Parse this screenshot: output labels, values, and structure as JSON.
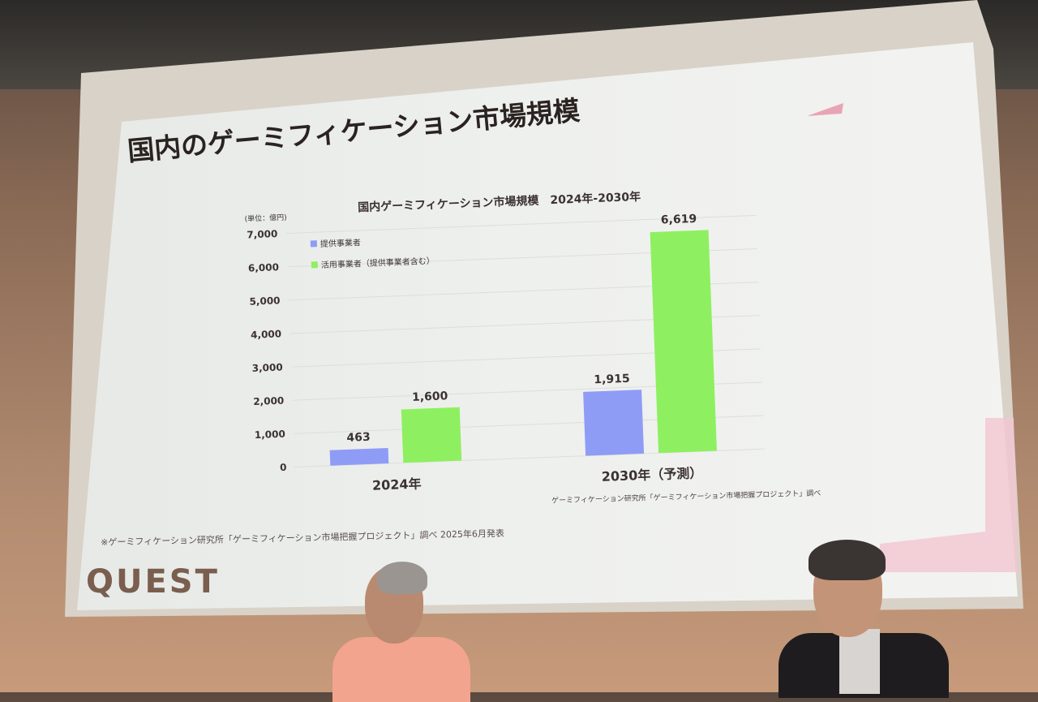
{
  "slide": {
    "title": "国内のゲーミフィケーション市場規模",
    "source_small": "ゲーミフィケーション研究所「ゲーミフィケーション市場把握プロジェクト」調べ",
    "footnote": "※ゲーミフィケーション研究所「ゲーミフィケーション市場把握プロジェクト」調べ 2025年6月発表",
    "logo": "QUEST"
  },
  "chart_data": {
    "type": "bar",
    "title": "国内ゲーミフィケーション市場規模　2024年-2030年",
    "unit_label": "(単位：億円)",
    "categories": [
      "2024年",
      "2030年（予測）"
    ],
    "series": [
      {
        "name": "提供事業者",
        "values": [
          463,
          1915
        ],
        "color": "#8f9cf5"
      },
      {
        "name": "活用事業者（提供事業者含む）",
        "values": [
          1600,
          6619
        ],
        "color": "#8ef060"
      }
    ],
    "data_labels": [
      [
        "463",
        "1,915"
      ],
      [
        "1,600",
        "6,619"
      ]
    ],
    "ylim": [
      0,
      7000
    ],
    "yticks": [
      "0",
      "1,000",
      "2,000",
      "3,000",
      "4,000",
      "5,000",
      "6,000",
      "7,000"
    ],
    "ytick_values": [
      0,
      1000,
      2000,
      3000,
      4000,
      5000,
      6000,
      7000
    ],
    "grid": true,
    "legend": "top-left"
  }
}
